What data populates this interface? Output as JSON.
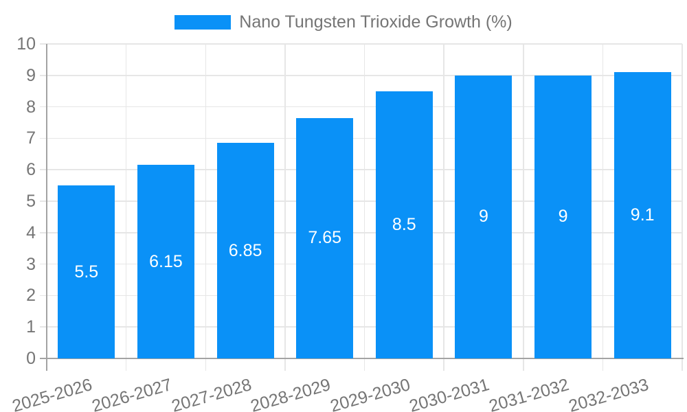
{
  "legend": {
    "label": "Nano Tungsten Trioxide Growth (%)"
  },
  "chart_data": {
    "type": "bar",
    "title": "",
    "series_name": "Nano Tungsten Trioxide Growth (%)",
    "categories": [
      "2025-2026",
      "2026-2027",
      "2027-2028",
      "2028-2029",
      "2029-2030",
      "2030-2031",
      "2031-2032",
      "2032-2033"
    ],
    "values": [
      5.5,
      6.15,
      6.85,
      7.65,
      8.5,
      9,
      9,
      9.1
    ],
    "value_labels": [
      "5.5",
      "6.15",
      "6.85",
      "7.65",
      "8.5",
      "9",
      "9",
      "9.1"
    ],
    "value_label_position": "center-of-bar",
    "xlabel": "",
    "ylabel": "",
    "ylim": [
      0,
      10
    ],
    "yticks": [
      0,
      1,
      2,
      3,
      4,
      5,
      6,
      7,
      8,
      9,
      10
    ],
    "grid": true,
    "legend_position": "top-center",
    "x_label_rotation_deg": -16,
    "colors": {
      "bar": "#0a91f7",
      "value_label": "#ffffff",
      "axis_text": "#757575",
      "gridline": "#e6e6e6",
      "axis_line": "#a3a3a3",
      "background": "#ffffff"
    }
  }
}
